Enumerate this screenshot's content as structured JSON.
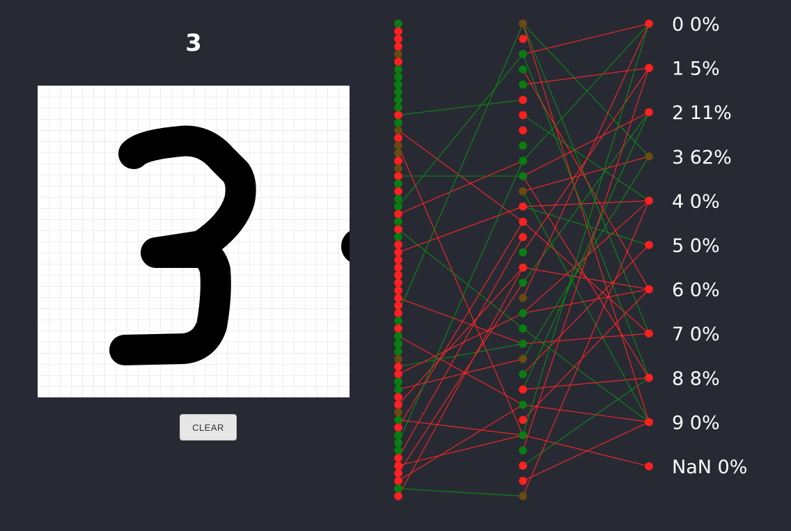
{
  "prediction": "3",
  "clear_label": "CLEAR",
  "colors": {
    "background": "#272a33",
    "active_positive": "#0a7d12",
    "active_negative": "#ff2020",
    "mixed": "#6b4a12",
    "link_positive": "#0e8a16",
    "link_negative": "#ff2626"
  },
  "network": {
    "input_layer": {
      "node_count": 63,
      "states": [
        "g",
        "r",
        "r",
        "r",
        "o",
        "r",
        "g",
        "g",
        "g",
        "g",
        "g",
        "g",
        "r",
        "g",
        "o",
        "r",
        "o",
        "o",
        "r",
        "o",
        "r",
        "g",
        "r",
        "g",
        "g",
        "r",
        "g",
        "r",
        "g",
        "r",
        "r",
        "r",
        "r",
        "r",
        "r",
        "r",
        "r",
        "r",
        "r",
        "g",
        "r",
        "g",
        "g",
        "g",
        "o",
        "r",
        "r",
        "g",
        "g",
        "r",
        "r",
        "o",
        "g",
        "r",
        "g",
        "g",
        "g",
        "r",
        "r",
        "r",
        "r",
        "g",
        "r"
      ]
    },
    "hidden_layer": {
      "node_count": 32,
      "states": [
        "o",
        "r",
        "g",
        "g",
        "g",
        "r",
        "r",
        "r",
        "g",
        "g",
        "g",
        "o",
        "r",
        "r",
        "r",
        "g",
        "r",
        "g",
        "o",
        "g",
        "g",
        "g",
        "o",
        "g",
        "r",
        "g",
        "r",
        "g",
        "g",
        "r",
        "r",
        "o"
      ]
    },
    "output_layer": [
      {
        "label": "0 0%",
        "state": "r"
      },
      {
        "label": "1 5%",
        "state": "r"
      },
      {
        "label": "2 11%",
        "state": "r"
      },
      {
        "label": "3 62%",
        "state": "o"
      },
      {
        "label": "4 0%",
        "state": "r"
      },
      {
        "label": "5 0%",
        "state": "r"
      },
      {
        "label": "6 0%",
        "state": "r"
      },
      {
        "label": "7 0%",
        "state": "r"
      },
      {
        "label": "8 8%",
        "state": "r"
      },
      {
        "label": "9 0%",
        "state": "r"
      },
      {
        "label": "NaN 0%",
        "state": "r"
      }
    ],
    "links_input_hidden": [
      [
        12,
        5,
        "g"
      ],
      [
        14,
        13,
        "r"
      ],
      [
        16,
        27,
        "r"
      ],
      [
        20,
        10,
        "g"
      ],
      [
        24,
        2,
        "g"
      ],
      [
        25,
        9,
        "r"
      ],
      [
        27,
        20,
        "g"
      ],
      [
        30,
        12,
        "r"
      ],
      [
        36,
        21,
        "r"
      ],
      [
        38,
        0,
        "g"
      ],
      [
        41,
        25,
        "r"
      ],
      [
        45,
        21,
        "g"
      ],
      [
        46,
        19,
        "r"
      ],
      [
        48,
        22,
        "r"
      ],
      [
        50,
        16,
        "r"
      ],
      [
        52,
        27,
        "r"
      ],
      [
        53,
        13,
        "r"
      ],
      [
        55,
        9,
        "g"
      ],
      [
        57,
        14,
        "r"
      ],
      [
        58,
        27,
        "r"
      ],
      [
        59,
        17,
        "r"
      ],
      [
        60,
        25,
        "r"
      ],
      [
        61,
        31,
        "g"
      ],
      [
        62,
        16,
        "r"
      ]
    ],
    "links_hidden_output": [
      [
        0,
        3,
        "g"
      ],
      [
        0,
        7,
        "g"
      ],
      [
        0,
        9,
        "r"
      ],
      [
        2,
        0,
        "r"
      ],
      [
        2,
        8,
        "g"
      ],
      [
        3,
        6,
        "r"
      ],
      [
        4,
        1,
        "r"
      ],
      [
        6,
        4,
        "g"
      ],
      [
        9,
        0,
        "g"
      ],
      [
        10,
        2,
        "r"
      ],
      [
        10,
        8,
        "r"
      ],
      [
        11,
        3,
        "r"
      ],
      [
        11,
        9,
        "g"
      ],
      [
        12,
        5,
        "g"
      ],
      [
        12,
        4,
        "r"
      ],
      [
        13,
        7,
        "r"
      ],
      [
        15,
        1,
        "r"
      ],
      [
        16,
        6,
        "r"
      ],
      [
        17,
        2,
        "g"
      ],
      [
        18,
        0,
        "r"
      ],
      [
        19,
        4,
        "r"
      ],
      [
        19,
        6,
        "r"
      ],
      [
        20,
        9,
        "g"
      ],
      [
        21,
        7,
        "r"
      ],
      [
        22,
        3,
        "g"
      ],
      [
        23,
        5,
        "r"
      ],
      [
        24,
        2,
        "g"
      ],
      [
        24,
        8,
        "r"
      ],
      [
        25,
        9,
        "r"
      ],
      [
        26,
        6,
        "r"
      ],
      [
        27,
        0,
        "g"
      ],
      [
        27,
        10,
        "r"
      ],
      [
        28,
        1,
        "r"
      ],
      [
        29,
        8,
        "g"
      ],
      [
        30,
        9,
        "r"
      ],
      [
        31,
        4,
        "r"
      ]
    ]
  }
}
